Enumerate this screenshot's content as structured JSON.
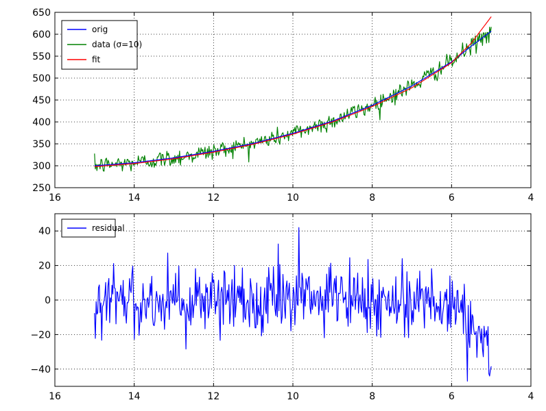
{
  "chart_data": [
    {
      "type": "line",
      "title": "",
      "xlabel": "",
      "ylabel": "",
      "xlim": [
        16,
        4
      ],
      "ylim": [
        250,
        650
      ],
      "x_inverted": true,
      "grid": true,
      "legend_position": "top-left",
      "xticks": [
        16,
        14,
        12,
        10,
        8,
        6,
        4
      ],
      "yticks": [
        250,
        300,
        350,
        400,
        450,
        500,
        550,
        600,
        650
      ],
      "x_start": 15.0,
      "x_end": 5.0,
      "num_points": 500,
      "series": [
        {
          "name": "orig",
          "color": "#0000ff",
          "x": [
            15.0,
            14.0,
            13.0,
            12.0,
            11.0,
            10.0,
            9.0,
            8.0,
            7.0,
            6.0,
            5.5,
            5.0
          ],
          "values": [
            300,
            307,
            318,
            333,
            351,
            374,
            402,
            438,
            482,
            537,
            573,
            607
          ]
        },
        {
          "name": "data (σ=10)",
          "color": "#008000",
          "noise_sigma": 10,
          "follows": "orig"
        },
        {
          "name": "fit",
          "color": "#ff0000",
          "x": [
            15.0,
            14.0,
            13.0,
            12.0,
            11.0,
            10.0,
            9.0,
            8.0,
            7.0,
            6.0,
            5.5,
            5.0
          ],
          "values": [
            298,
            305,
            316,
            331,
            349,
            372,
            400,
            435,
            478,
            535,
            580,
            640
          ]
        }
      ]
    },
    {
      "type": "line",
      "title": "",
      "xlabel": "",
      "ylabel": "",
      "xlim": [
        16,
        4
      ],
      "ylim": [
        -50,
        50
      ],
      "x_inverted": true,
      "grid": true,
      "legend_position": "top-left",
      "xticks": [
        16,
        14,
        12,
        10,
        8,
        6,
        4
      ],
      "yticks": [
        -40,
        -20,
        0,
        20,
        40
      ],
      "x_start": 15.0,
      "x_end": 5.0,
      "num_points": 500,
      "series": [
        {
          "name": "residual",
          "color": "#0000ff",
          "baseline": [
            {
              "x": 15.0,
              "y": 0
            },
            {
              "x": 6.0,
              "y": 0
            },
            {
              "x": 5.5,
              "y": -15
            },
            {
              "x": 5.0,
              "y": -35
            }
          ],
          "noise_sigma": 10,
          "extremes": [
            {
              "x": 9.85,
              "y": 42
            },
            {
              "x": 5.05,
              "y": -44
            },
            {
              "x": 5.6,
              "y": -47
            }
          ]
        }
      ]
    }
  ]
}
